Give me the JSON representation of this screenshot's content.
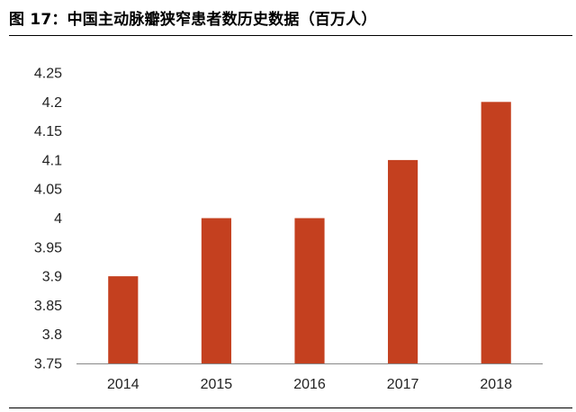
{
  "figure": {
    "title": "图 17：中国主动脉瓣狭窄患者数历史数据（百万人）"
  },
  "chart_data": {
    "type": "bar",
    "categories": [
      "2014",
      "2015",
      "2016",
      "2017",
      "2018"
    ],
    "values": [
      3.9,
      4.0,
      4.0,
      4.1,
      4.2
    ],
    "ylim": [
      3.75,
      4.25
    ],
    "yticks": [
      3.75,
      3.8,
      3.85,
      3.9,
      3.95,
      4,
      4.05,
      4.1,
      4.15,
      4.2,
      4.25
    ],
    "ytick_labels": [
      "3.75",
      "3.8",
      "3.85",
      "3.9",
      "3.95",
      "4",
      "4.05",
      "4.1",
      "4.15",
      "4.2",
      "4.25"
    ],
    "bar_color": "#c4401f",
    "grid": false,
    "legend": "none"
  }
}
